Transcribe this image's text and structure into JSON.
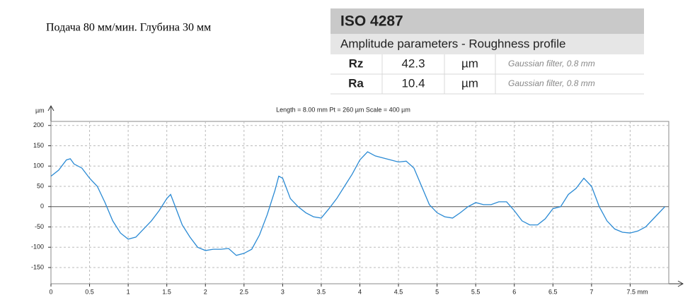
{
  "caption": "Подача 80 мм/мин. Глубина 30 мм",
  "iso_table": {
    "title": "ISO 4287",
    "subtitle": "Amplitude parameters - Roughness profile",
    "rows": [
      [
        "Rz",
        "42.3",
        "µm",
        "Gaussian filter, 0.8 mm"
      ],
      [
        "Ra",
        "10.4",
        "µm",
        "Gaussian filter, 0.8 mm"
      ]
    ]
  },
  "chart_data": {
    "type": "line",
    "subtitle": "Length = 8.00 mm  Pt = 260 µm  Scale = 400 µm",
    "y_label": "µm",
    "color": "#2a8ad4",
    "grid": true,
    "x": [
      0,
      0.1,
      0.2,
      0.25,
      0.3,
      0.4,
      0.5,
      0.6,
      0.7,
      0.8,
      0.9,
      1.0,
      1.1,
      1.2,
      1.3,
      1.4,
      1.5,
      1.55,
      1.6,
      1.7,
      1.8,
      1.9,
      2.0,
      2.1,
      2.2,
      2.3,
      2.4,
      2.5,
      2.6,
      2.7,
      2.8,
      2.9,
      2.95,
      3.0,
      3.1,
      3.2,
      3.3,
      3.4,
      3.5,
      3.6,
      3.7,
      3.8,
      3.9,
      4.0,
      4.1,
      4.2,
      4.3,
      4.4,
      4.5,
      4.6,
      4.7,
      4.8,
      4.9,
      5.0,
      5.1,
      5.2,
      5.3,
      5.4,
      5.5,
      5.6,
      5.7,
      5.8,
      5.9,
      6.0,
      6.1,
      6.2,
      6.3,
      6.4,
      6.5,
      6.6,
      6.7,
      6.8,
      6.9,
      7.0,
      7.1,
      7.2,
      7.3,
      7.4,
      7.5,
      7.6,
      7.7,
      7.8,
      7.9,
      7.95
    ],
    "values": [
      75,
      90,
      115,
      118,
      105,
      95,
      70,
      50,
      10,
      -35,
      -65,
      -80,
      -75,
      -55,
      -35,
      -10,
      20,
      30,
      5,
      -45,
      -75,
      -100,
      -108,
      -105,
      -105,
      -103,
      -120,
      -115,
      -105,
      -70,
      -20,
      40,
      75,
      70,
      20,
      0,
      -15,
      -25,
      -28,
      -5,
      20,
      50,
      80,
      115,
      135,
      125,
      120,
      115,
      110,
      112,
      95,
      50,
      5,
      -15,
      -25,
      -28,
      -15,
      0,
      10,
      5,
      5,
      12,
      12,
      -10,
      -35,
      -45,
      -45,
      -30,
      -5,
      0,
      30,
      45,
      70,
      50,
      0,
      -35,
      -55,
      -63,
      -65,
      -60,
      -50,
      -30,
      -10,
      0
    ],
    "xlim": [
      0,
      8
    ],
    "ylim": [
      -190,
      210
    ],
    "xticks": [
      0,
      0.5,
      1,
      1.5,
      2,
      2.5,
      3,
      3.5,
      4,
      4.5,
      5,
      5.5,
      6,
      6.5,
      7,
      {
        "value": 7.5,
        "label": "7.5 mm"
      }
    ],
    "yticks": [
      -150,
      -100,
      -50,
      0,
      50,
      100,
      150,
      200
    ]
  }
}
